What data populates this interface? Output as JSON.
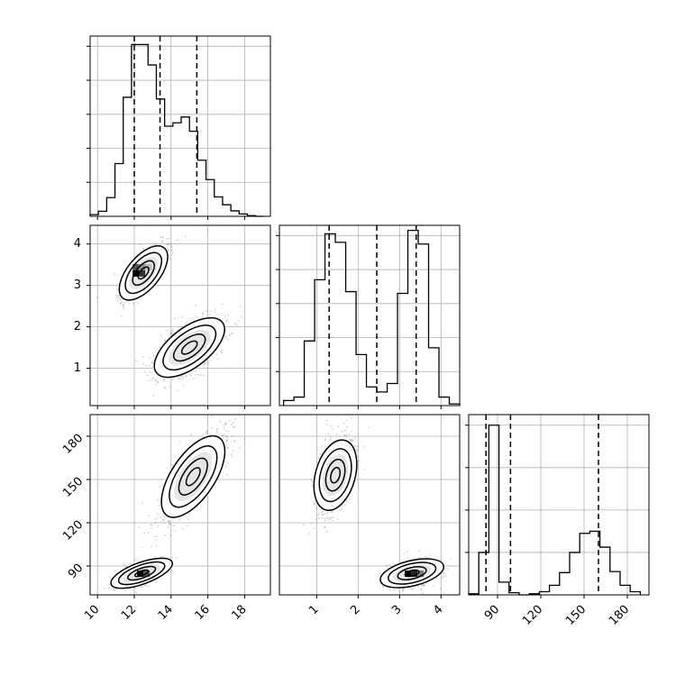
{
  "chart_data": [
    {
      "type": "histogram",
      "panel": "hist-x",
      "bins": [
        9.6,
        10.05,
        10.5,
        10.95,
        11.4,
        11.85,
        12.3,
        12.75,
        13.2,
        13.65,
        14.1,
        14.55,
        15.0,
        15.45,
        15.9,
        16.35,
        16.8,
        17.25,
        17.7,
        18.15,
        18.6,
        19.05
      ],
      "counts": [
        5,
        15,
        55,
        155,
        350,
        505,
        505,
        445,
        345,
        265,
        275,
        292,
        250,
        165,
        108,
        57,
        34,
        16,
        7,
        2,
        0
      ],
      "quantiles": [
        12.0,
        13.4,
        15.4
      ],
      "xlim": [
        9.6,
        19.4
      ],
      "ylim": [
        0,
        530
      ]
    },
    {
      "type": "histogram",
      "panel": "hist-y",
      "bins": [
        0.2,
        0.45,
        0.7,
        0.95,
        1.2,
        1.45,
        1.7,
        1.95,
        2.2,
        2.45,
        2.7,
        2.95,
        3.2,
        3.45,
        3.7,
        3.95,
        4.2,
        4.45
      ],
      "counts": [
        15,
        25,
        190,
        370,
        505,
        480,
        335,
        150,
        55,
        40,
        65,
        330,
        515,
        475,
        170,
        25,
        5
      ],
      "quantiles": [
        1.3,
        2.45,
        3.4
      ],
      "xlim": [
        0.1,
        4.45
      ],
      "ylim": [
        0,
        530
      ]
    },
    {
      "type": "histogram",
      "panel": "hist-z",
      "bins": [
        70,
        77,
        84,
        91,
        98,
        105,
        112,
        119,
        126,
        133,
        140,
        147,
        154,
        161,
        168,
        175,
        182,
        189
      ],
      "counts": [
        5,
        200,
        800,
        60,
        10,
        0,
        5,
        15,
        45,
        105,
        200,
        290,
        300,
        225,
        110,
        45,
        15
      ],
      "quantiles": [
        82,
        99,
        160
      ],
      "xlim": [
        70,
        195
      ],
      "ylim": [
        0,
        850
      ]
    },
    {
      "type": "scatter",
      "panel": "corner-x-y",
      "note": "2D density with contours",
      "modes": [
        {
          "cx": 12.5,
          "cy": 3.3
        },
        {
          "cx": 15.0,
          "cy": 1.5
        }
      ],
      "xlim": [
        9.6,
        19.4
      ],
      "ylim": [
        0.1,
        4.45
      ]
    },
    {
      "type": "scatter",
      "panel": "corner-x-z",
      "modes": [
        {
          "cx": 12.4,
          "cy": 85
        },
        {
          "cx": 15.2,
          "cy": 152
        }
      ],
      "xlim": [
        9.6,
        19.4
      ],
      "ylim": [
        70,
        195
      ]
    },
    {
      "type": "scatter",
      "panel": "corner-y-z",
      "modes": [
        {
          "cx": 1.45,
          "cy": 153
        },
        {
          "cx": 3.3,
          "cy": 85
        }
      ],
      "xlim": [
        0.1,
        4.45
      ],
      "ylim": [
        70,
        195
      ]
    }
  ],
  "axes": {
    "x_ticks": [
      "10",
      "12",
      "14",
      "16",
      "18"
    ],
    "y_ticks": [
      "1",
      "2",
      "3",
      "4"
    ],
    "z_ticks": [
      "90",
      "120",
      "150",
      "180"
    ]
  },
  "grid": true,
  "colors": {
    "line": "#000000",
    "grid": "#b0b0b0",
    "points": "#000000"
  }
}
